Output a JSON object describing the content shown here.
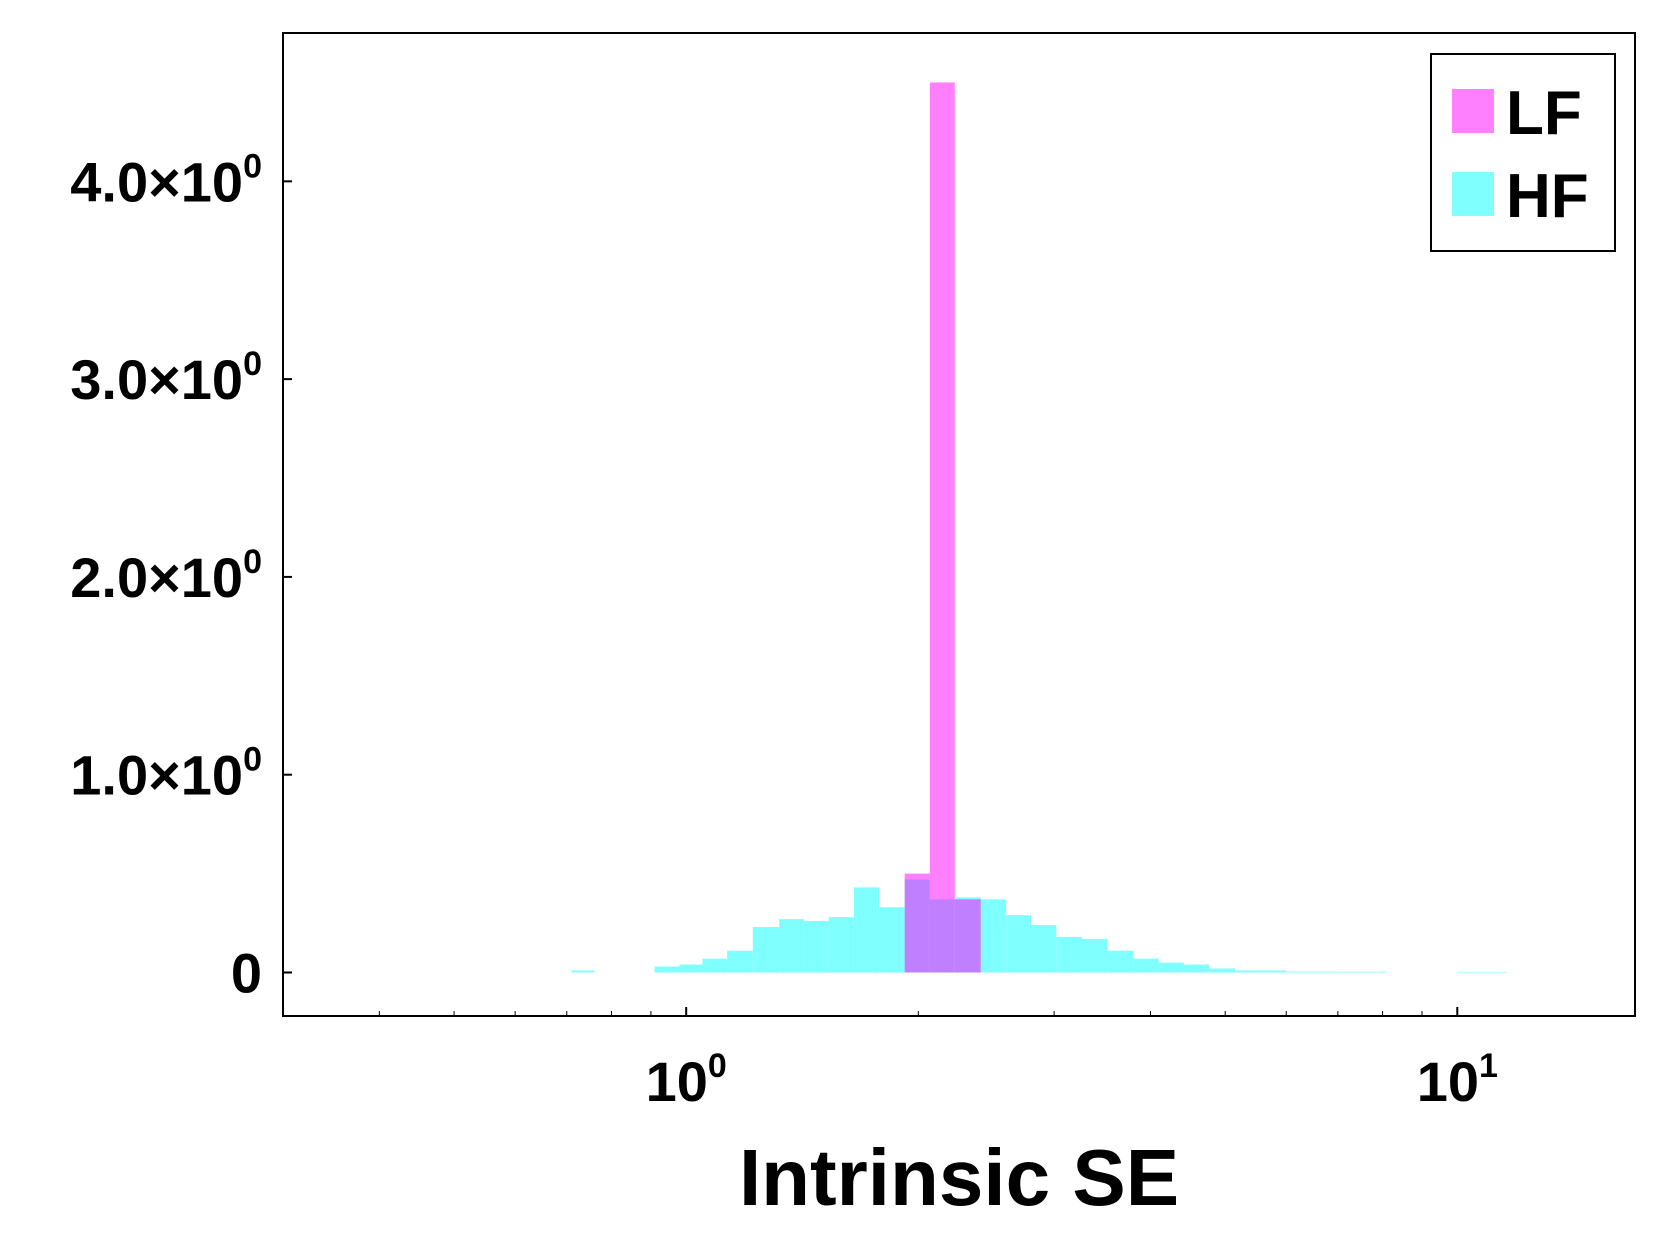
{
  "chart_data": {
    "type": "bar",
    "xlabel": "Intrinsic SE",
    "ylabel": "",
    "x_scale": "log",
    "xlim": [
      0.3,
      17
    ],
    "ylim": [
      -0.22,
      4.75
    ],
    "grid": false,
    "legend_position": "top-right",
    "x_ticks": [
      {
        "value": 1,
        "base": "10",
        "exponent": "0"
      },
      {
        "value": 10,
        "base": "10",
        "exponent": "1"
      }
    ],
    "y_ticks": [
      {
        "value": 0,
        "base": "0",
        "exponent": ""
      },
      {
        "value": 1,
        "base": "1.0×10",
        "exponent": "0"
      },
      {
        "value": 2,
        "base": "2.0×10",
        "exponent": "0"
      },
      {
        "value": 3,
        "base": "3.0×10",
        "exponent": "0"
      },
      {
        "value": 4,
        "base": "4.0×10",
        "exponent": "0"
      }
    ],
    "series": [
      {
        "name": "HF",
        "color": "#80ffff",
        "opacity": 1,
        "bins": [
          {
            "x0": 0.71,
            "x1": 0.76,
            "value": 0.01
          },
          {
            "x0": 0.91,
            "x1": 0.98,
            "value": 0.03
          },
          {
            "x0": 0.98,
            "x1": 1.05,
            "value": 0.04
          },
          {
            "x0": 1.05,
            "x1": 1.13,
            "value": 0.07
          },
          {
            "x0": 1.13,
            "x1": 1.22,
            "value": 0.11
          },
          {
            "x0": 1.22,
            "x1": 1.32,
            "value": 0.23
          },
          {
            "x0": 1.32,
            "x1": 1.42,
            "value": 0.27
          },
          {
            "x0": 1.42,
            "x1": 1.53,
            "value": 0.26
          },
          {
            "x0": 1.53,
            "x1": 1.65,
            "value": 0.28
          },
          {
            "x0": 1.65,
            "x1": 1.78,
            "value": 0.43
          },
          {
            "x0": 1.78,
            "x1": 1.92,
            "value": 0.33
          },
          {
            "x0": 1.92,
            "x1": 2.07,
            "value": 0.47
          },
          {
            "x0": 2.07,
            "x1": 2.23,
            "value": 0.37
          },
          {
            "x0": 2.23,
            "x1": 2.41,
            "value": 0.38
          },
          {
            "x0": 2.41,
            "x1": 2.6,
            "value": 0.37
          },
          {
            "x0": 2.6,
            "x1": 2.8,
            "value": 0.29
          },
          {
            "x0": 2.8,
            "x1": 3.02,
            "value": 0.24
          },
          {
            "x0": 3.02,
            "x1": 3.26,
            "value": 0.18
          },
          {
            "x0": 3.26,
            "x1": 3.52,
            "value": 0.17
          },
          {
            "x0": 3.52,
            "x1": 3.8,
            "value": 0.11
          },
          {
            "x0": 3.8,
            "x1": 4.1,
            "value": 0.07
          },
          {
            "x0": 4.1,
            "x1": 4.42,
            "value": 0.05
          },
          {
            "x0": 4.42,
            "x1": 4.77,
            "value": 0.04
          },
          {
            "x0": 4.77,
            "x1": 5.15,
            "value": 0.02
          },
          {
            "x0": 5.15,
            "x1": 5.55,
            "value": 0.01
          },
          {
            "x0": 5.55,
            "x1": 6.0,
            "value": 0.01
          },
          {
            "x0": 6.0,
            "x1": 6.47,
            "value": 0.005
          },
          {
            "x0": 6.47,
            "x1": 6.98,
            "value": 0.005
          },
          {
            "x0": 6.98,
            "x1": 7.53,
            "value": 0.004
          },
          {
            "x0": 7.53,
            "x1": 8.1,
            "value": 0.004
          },
          {
            "x0": 10.0,
            "x1": 10.8,
            "value": 0.003
          },
          {
            "x0": 10.8,
            "x1": 11.6,
            "value": 0.003
          }
        ]
      },
      {
        "name": "LF",
        "color": "#ff00ff",
        "opacity": 0.5,
        "bins": [
          {
            "x0": 1.92,
            "x1": 2.07,
            "value": 0.5
          },
          {
            "x0": 2.07,
            "x1": 2.23,
            "value": 4.5
          },
          {
            "x0": 2.23,
            "x1": 2.41,
            "value": 0.37
          }
        ]
      }
    ],
    "legend": [
      {
        "label": "LF",
        "color": "#ff80ff"
      },
      {
        "label": "HF",
        "color": "#80ffff"
      }
    ]
  }
}
